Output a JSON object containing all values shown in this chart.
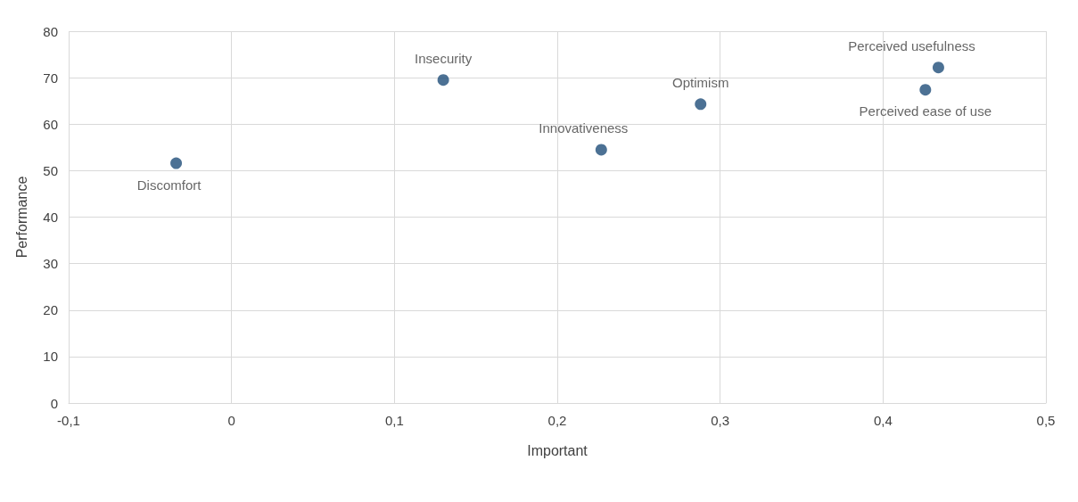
{
  "chart_data": {
    "type": "scatter",
    "xlabel": "Important",
    "ylabel": "Performance",
    "x": [
      -0.034,
      0.13,
      0.227,
      0.288,
      0.434,
      0.426
    ],
    "values": [
      51.6,
      69.5,
      54.5,
      64.3,
      72.2,
      67.4
    ],
    "color": "#1f4e79",
    "marker": "circle",
    "grid": true,
    "xlim": [
      -0.1,
      0.5
    ],
    "xticks": [
      {
        "value": -0.1,
        "label": "-0,1"
      },
      0,
      {
        "value": 0.1,
        "label": "0,1"
      },
      {
        "value": 0.2,
        "label": "0,2"
      },
      {
        "value": 0.3,
        "label": "0,3"
      },
      {
        "value": 0.4,
        "label": "0,4"
      },
      {
        "value": 0.5,
        "label": "0,5"
      }
    ],
    "ylim": [
      0,
      80
    ],
    "yticks": [
      0,
      10,
      20,
      30,
      40,
      50,
      60,
      70,
      80
    ],
    "annotations": [
      {
        "text": "Discomfort",
        "x": -0.034,
        "y": 51.6
      },
      {
        "text": "Insecurity",
        "x": 0.13,
        "y": 69.5
      },
      {
        "text": "Innovativeness",
        "x": 0.227,
        "y": 54.5
      },
      {
        "text": "Optimism",
        "x": 0.288,
        "y": 64.3
      },
      {
        "text": "Perceived usefulness",
        "x": 0.434,
        "y": 72.2
      },
      {
        "text": "Perceived ease of use",
        "x": 0.426,
        "y": 67.4
      }
    ]
  }
}
